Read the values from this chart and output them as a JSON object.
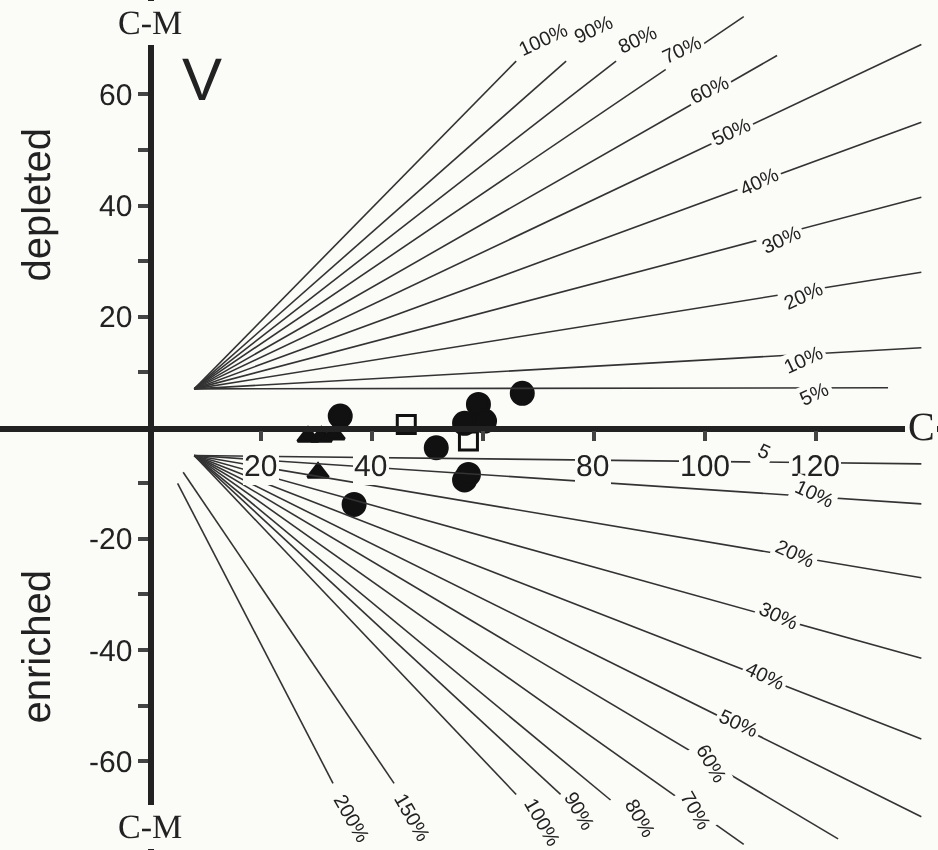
{
  "chart_data": {
    "type": "scatter",
    "xlim": [
      -27,
      142
    ],
    "ylim": [
      -76,
      77
    ],
    "xticks": [
      20,
      40,
      {
        "value": 60,
        "label": null
      },
      80,
      100,
      120
    ],
    "yticks": [
      -60,
      {
        "value": -50,
        "label": null
      },
      -40,
      {
        "value": -30,
        "label": null
      },
      -20,
      {
        "value": -10,
        "label": null
      },
      {
        "value": 10,
        "label": null
      },
      20,
      {
        "value": 30,
        "label": null
      },
      40,
      {
        "value": 50,
        "label": null
      },
      60
    ],
    "grid": false,
    "series": [
      {
        "marker": "circle",
        "color": "#111111",
        "x": [
          34.3,
          59.2,
          67.1,
          56.7,
          60.3,
          51.6,
          56.7,
          57.4,
          36.8
        ],
        "values": [
          2.1,
          4.2,
          6.2,
          0.8,
          1.2,
          -3.6,
          -9.4,
          -8.4,
          -13.8
        ]
      },
      {
        "marker": "square",
        "color": "#111111",
        "x": [
          46.2,
          57.4
        ],
        "values": [
          0.6,
          -2.4
        ]
      },
      {
        "marker": "triangle",
        "color": "#111111",
        "x": [
          30.3,
          28.5,
          30.9,
          33.2
        ],
        "values": [
          -8.1,
          -1.6,
          -1.6,
          -1.2
        ]
      },
      {
        "type": "line",
        "color": "#333333",
        "x": [
          8,
          66
        ],
        "values": [
          7,
          66
        ]
      },
      {
        "type": "line",
        "color": "#333333",
        "x": [
          8,
          75
        ],
        "values": [
          7,
          66
        ]
      },
      {
        "type": "line",
        "color": "#333333",
        "x": [
          8,
          84
        ],
        "values": [
          7,
          66
        ]
      },
      {
        "type": "line",
        "color": "#333333",
        "x": [
          8,
          107
        ],
        "values": [
          7,
          74
        ]
      },
      {
        "type": "line",
        "color": "#333333",
        "x": [
          8,
          113
        ],
        "values": [
          7,
          67
        ]
      },
      {
        "type": "line",
        "color": "#333333",
        "x": [
          8,
          139
        ],
        "values": [
          7,
          69
        ]
      },
      {
        "type": "line",
        "color": "#333333",
        "x": [
          8,
          139
        ],
        "values": [
          7,
          55
        ]
      },
      {
        "type": "line",
        "color": "#333333",
        "x": [
          8,
          139
        ],
        "values": [
          7,
          41.5
        ]
      },
      {
        "type": "line",
        "color": "#333333",
        "x": [
          8,
          139
        ],
        "values": [
          7,
          28
        ]
      },
      {
        "type": "line",
        "color": "#333333",
        "x": [
          8,
          139
        ],
        "values": [
          7,
          14.4
        ]
      },
      {
        "type": "line",
        "color": "#333333",
        "x": [
          8,
          133
        ],
        "values": [
          7,
          7.2
        ]
      },
      {
        "type": "line",
        "color": "#333333",
        "x": [
          8,
          139
        ],
        "values": [
          -5,
          -6.5
        ]
      },
      {
        "type": "line",
        "color": "#333333",
        "x": [
          8,
          139
        ],
        "values": [
          -5,
          -13.7
        ]
      },
      {
        "type": "line",
        "color": "#333333",
        "x": [
          8,
          139
        ],
        "values": [
          -5,
          -27
        ]
      },
      {
        "type": "line",
        "color": "#333333",
        "x": [
          8,
          139
        ],
        "values": [
          -5,
          -41.5
        ]
      },
      {
        "type": "line",
        "color": "#333333",
        "x": [
          8,
          139
        ],
        "values": [
          -5,
          -56
        ]
      },
      {
        "type": "line",
        "color": "#333333",
        "x": [
          8,
          139
        ],
        "values": [
          -5,
          -70
        ]
      },
      {
        "type": "line",
        "color": "#333333",
        "x": [
          8,
          124
        ],
        "values": [
          -5,
          -74
        ]
      },
      {
        "type": "line",
        "color": "#333333",
        "x": [
          8,
          107
        ],
        "values": [
          -5,
          -75
        ]
      },
      {
        "type": "line",
        "color": "#333333",
        "x": [
          8,
          83
        ],
        "values": [
          -5,
          -67
        ]
      },
      {
        "type": "line",
        "color": "#333333",
        "x": [
          8,
          74
        ],
        "values": [
          -5,
          -66
        ]
      },
      {
        "type": "line",
        "color": "#333333",
        "x": [
          8,
          66
        ],
        "values": [
          -5,
          -66
        ]
      },
      {
        "type": "line",
        "color": "#333333",
        "x": [
          6,
          44
        ],
        "values": [
          -8,
          -64
        ]
      },
      {
        "type": "line",
        "color": "#333333",
        "x": [
          5,
          33
        ],
        "values": [
          -10,
          -64
        ]
      }
    ],
    "annotations": [
      "C-M",
      "C-M",
      "C",
      "V",
      "depleted",
      "enriched",
      {
        "text": "100%",
        "x": 71,
        "y": 69.7
      },
      {
        "text": "90%",
        "x": 80,
        "y": 71.5
      },
      {
        "text": "80%",
        "x": 88,
        "y": 69.7
      },
      {
        "text": "70%",
        "x": 96,
        "y": 68
      },
      {
        "text": "60%",
        "x": 101,
        "y": 60.6
      },
      {
        "text": "50%",
        "x": 105,
        "y": 53
      },
      {
        "text": "40%",
        "x": 110,
        "y": 44
      },
      {
        "text": "30%",
        "x": 114,
        "y": 33.6
      },
      {
        "text": "20%",
        "x": 118,
        "y": 23.5
      },
      {
        "text": "10%",
        "x": 118,
        "y": 12
      },
      {
        "text": "5%",
        "x": 120,
        "y": 6
      },
      {
        "text": "5",
        "x": 110.5,
        "y": -4.5
      },
      {
        "text": "10%",
        "x": 119.5,
        "y": -12
      },
      {
        "text": "20%",
        "x": 116,
        "y": -23
      },
      {
        "text": "30%",
        "x": 113,
        "y": -34
      },
      {
        "text": "40%",
        "x": 110.5,
        "y": -45
      },
      {
        "text": "50%",
        "x": 106,
        "y": -53.4
      },
      {
        "text": "60%",
        "x": 101,
        "y": -60.6
      },
      {
        "text": "70%",
        "x": 98,
        "y": -69
      },
      {
        "text": "80%",
        "x": 88,
        "y": -70.5
      },
      {
        "text": "90%",
        "x": 77,
        "y": -69
      },
      {
        "text": "100%",
        "x": 70.5,
        "y": -71
      },
      {
        "text": "150%",
        "x": 47,
        "y": -70.5
      },
      {
        "text": "200%",
        "x": 36,
        "y": -70.5
      }
    ]
  }
}
